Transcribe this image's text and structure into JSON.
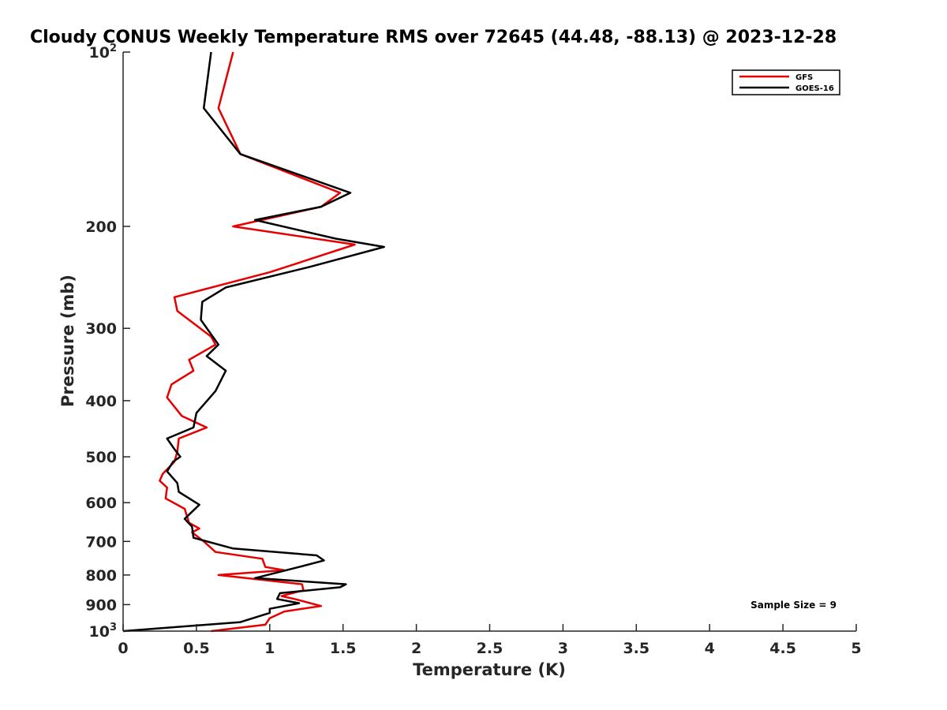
{
  "chart_data": {
    "type": "line",
    "title": "Cloudy CONUS Weekly Temperature RMS over 72645 (44.48, -88.13) @ 2023-12-28",
    "xlabel": "Temperature (K)",
    "ylabel": "Pressure (mb)",
    "xlim": [
      0,
      5
    ],
    "ylim": [
      100,
      1000
    ],
    "yscale": "log",
    "yreversed": true,
    "x_ticks": [
      "0",
      "0.5",
      "1",
      "1.5",
      "2",
      "2.5",
      "3",
      "3.5",
      "4",
      "4.5",
      "5"
    ],
    "y_ticks": [
      {
        "value": 100,
        "base": "10",
        "exp": "2"
      },
      {
        "value": 200,
        "label": "200"
      },
      {
        "value": 300,
        "label": "300"
      },
      {
        "value": 400,
        "label": "400"
      },
      {
        "value": 500,
        "label": "500"
      },
      {
        "value": 600,
        "label": "600"
      },
      {
        "value": 700,
        "label": "700"
      },
      {
        "value": 800,
        "label": "800"
      },
      {
        "value": 900,
        "label": "900"
      },
      {
        "value": 1000,
        "base": "10",
        "exp": "3"
      }
    ],
    "grid": false,
    "legend_position": "top-right",
    "series": [
      {
        "name": "GFS",
        "color": "#e60000",
        "points": [
          [
            0.75,
            100
          ],
          [
            0.65,
            125
          ],
          [
            0.8,
            150
          ],
          [
            1.48,
            175
          ],
          [
            1.35,
            185
          ],
          [
            0.75,
            200
          ],
          [
            1.58,
            215
          ],
          [
            1.0,
            240
          ],
          [
            0.35,
            265
          ],
          [
            0.37,
            280
          ],
          [
            0.6,
            310
          ],
          [
            0.63,
            320
          ],
          [
            0.45,
            340
          ],
          [
            0.48,
            355
          ],
          [
            0.33,
            375
          ],
          [
            0.3,
            395
          ],
          [
            0.4,
            425
          ],
          [
            0.57,
            445
          ],
          [
            0.38,
            465
          ],
          [
            0.37,
            490
          ],
          [
            0.35,
            510
          ],
          [
            0.27,
            535
          ],
          [
            0.25,
            550
          ],
          [
            0.3,
            565
          ],
          [
            0.29,
            590
          ],
          [
            0.42,
            615
          ],
          [
            0.45,
            650
          ],
          [
            0.52,
            665
          ],
          [
            0.47,
            675
          ],
          [
            0.55,
            700
          ],
          [
            0.63,
            730
          ],
          [
            0.95,
            750
          ],
          [
            0.97,
            775
          ],
          [
            1.1,
            785
          ],
          [
            0.65,
            800
          ],
          [
            1.22,
            830
          ],
          [
            1.23,
            850
          ],
          [
            1.08,
            870
          ],
          [
            1.17,
            880
          ],
          [
            1.35,
            905
          ],
          [
            1.1,
            925
          ],
          [
            1.0,
            950
          ],
          [
            0.97,
            975
          ],
          [
            0.6,
            1000
          ]
        ]
      },
      {
        "name": "GOES-16",
        "color": "#000000",
        "points": [
          [
            0.6,
            100
          ],
          [
            0.55,
            125
          ],
          [
            0.8,
            150
          ],
          [
            1.55,
            175
          ],
          [
            1.35,
            185
          ],
          [
            0.9,
            195
          ],
          [
            1.45,
            210
          ],
          [
            1.78,
            217
          ],
          [
            1.27,
            235
          ],
          [
            0.7,
            255
          ],
          [
            0.54,
            270
          ],
          [
            0.53,
            290
          ],
          [
            0.65,
            320
          ],
          [
            0.57,
            335
          ],
          [
            0.7,
            355
          ],
          [
            0.63,
            385
          ],
          [
            0.5,
            420
          ],
          [
            0.48,
            445
          ],
          [
            0.3,
            465
          ],
          [
            0.35,
            485
          ],
          [
            0.39,
            500
          ],
          [
            0.34,
            510
          ],
          [
            0.3,
            530
          ],
          [
            0.37,
            555
          ],
          [
            0.38,
            575
          ],
          [
            0.52,
            605
          ],
          [
            0.42,
            640
          ],
          [
            0.47,
            660
          ],
          [
            0.48,
            690
          ],
          [
            0.75,
            720
          ],
          [
            1.32,
            740
          ],
          [
            1.37,
            755
          ],
          [
            1.2,
            775
          ],
          [
            0.9,
            810
          ],
          [
            1.52,
            830
          ],
          [
            1.48,
            840
          ],
          [
            1.07,
            860
          ],
          [
            1.05,
            880
          ],
          [
            1.2,
            895
          ],
          [
            1.0,
            915
          ],
          [
            1.0,
            930
          ],
          [
            0.8,
            965
          ],
          [
            0.0,
            1000
          ]
        ]
      }
    ],
    "annotation": "Sample Size = 9"
  }
}
